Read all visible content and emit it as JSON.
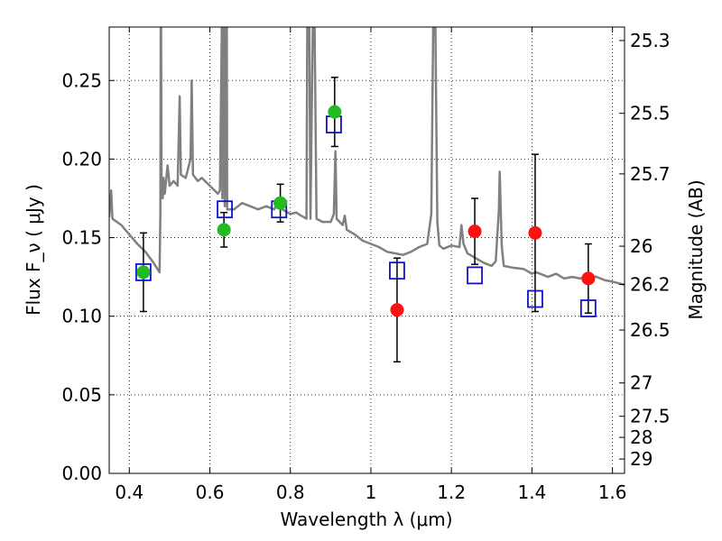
{
  "chart_data": {
    "type": "scatter",
    "xlabel": "Wavelength  λ (μm)",
    "ylabel": "Flux  F_ν  ( μJy )",
    "ylabel_right": "Magnitude (AB)",
    "xlim": [
      0.35,
      1.63
    ],
    "ylim": [
      0.0,
      0.284
    ],
    "x_ticks": [
      0.4,
      0.6,
      0.8,
      1.0,
      1.2,
      1.4,
      1.6
    ],
    "x_tick_labels": [
      "0.4",
      "0.6",
      "0.8",
      "1",
      "1.2",
      "1.4",
      "1.6"
    ],
    "y_ticks": [
      0.0,
      0.05,
      0.1,
      0.15,
      0.2,
      0.25
    ],
    "y_tick_labels": [
      "0.00",
      "0.05",
      "0.10",
      "0.15",
      "0.20",
      "0.25"
    ],
    "right_ticks": [
      {
        "label": "25.3",
        "value": 25.3
      },
      {
        "label": "25.5",
        "value": 25.5
      },
      {
        "label": "25.7",
        "value": 25.7
      },
      {
        "label": "26",
        "value": 26.0
      },
      {
        "label": "26.2",
        "value": 26.2
      },
      {
        "label": "26.5",
        "value": 26.5
      },
      {
        "label": "27",
        "value": 27.0
      },
      {
        "label": "27.5",
        "value": 27.5
      },
      {
        "label": "28",
        "value": 28.0
      },
      {
        "label": "29",
        "value": 29.0
      }
    ],
    "grid": true,
    "series": [
      {
        "marker": "circle",
        "color": "#22bb22",
        "points": [
          {
            "x": 0.435,
            "y": 0.128,
            "err": 0.025
          },
          {
            "x": 0.635,
            "y": 0.155,
            "err": 0.011
          },
          {
            "x": 0.775,
            "y": 0.172,
            "err": 0.012
          },
          {
            "x": 0.91,
            "y": 0.23,
            "err": 0.022
          }
        ]
      },
      {
        "marker": "circle",
        "color": "#ff1111",
        "points": [
          {
            "x": 1.065,
            "y": 0.104,
            "err": 0.033
          },
          {
            "x": 1.258,
            "y": 0.154,
            "err": 0.021
          },
          {
            "x": 1.408,
            "y": 0.153,
            "err": 0.05
          },
          {
            "x": 1.54,
            "y": 0.124,
            "err": 0.022
          }
        ]
      },
      {
        "marker": "square-open",
        "color": "#1111cc",
        "points": [
          {
            "x": 0.435,
            "y": 0.128
          },
          {
            "x": 0.637,
            "y": 0.168
          },
          {
            "x": 0.772,
            "y": 0.168
          },
          {
            "x": 0.908,
            "y": 0.222
          },
          {
            "x": 1.065,
            "y": 0.129
          },
          {
            "x": 1.258,
            "y": 0.126
          },
          {
            "x": 1.408,
            "y": 0.111
          },
          {
            "x": 1.54,
            "y": 0.105
          }
        ]
      },
      {
        "marker": "line",
        "color": "#808080",
        "points": [
          [
            0.35,
            0.163
          ],
          [
            0.355,
            0.18
          ],
          [
            0.358,
            0.162
          ],
          [
            0.38,
            0.158
          ],
          [
            0.4,
            0.152
          ],
          [
            0.42,
            0.146
          ],
          [
            0.44,
            0.141
          ],
          [
            0.46,
            0.134
          ],
          [
            0.47,
            0.13
          ],
          [
            0.475,
            0.128
          ],
          [
            0.477,
            0.165
          ],
          [
            0.478,
            0.29
          ],
          [
            0.479,
            0.29
          ],
          [
            0.48,
            0.18
          ],
          [
            0.483,
            0.175
          ],
          [
            0.485,
            0.188
          ],
          [
            0.488,
            0.178
          ],
          [
            0.495,
            0.196
          ],
          [
            0.5,
            0.183
          ],
          [
            0.51,
            0.186
          ],
          [
            0.52,
            0.183
          ],
          [
            0.525,
            0.24
          ],
          [
            0.528,
            0.19
          ],
          [
            0.54,
            0.188
          ],
          [
            0.552,
            0.2
          ],
          [
            0.555,
            0.25
          ],
          [
            0.558,
            0.19
          ],
          [
            0.57,
            0.186
          ],
          [
            0.58,
            0.188
          ],
          [
            0.6,
            0.183
          ],
          [
            0.62,
            0.178
          ],
          [
            0.625,
            0.18
          ],
          [
            0.63,
            0.29
          ],
          [
            0.631,
            0.175
          ],
          [
            0.636,
            0.29
          ],
          [
            0.637,
            0.17
          ],
          [
            0.642,
            0.29
          ],
          [
            0.643,
            0.168
          ],
          [
            0.66,
            0.168
          ],
          [
            0.68,
            0.172
          ],
          [
            0.7,
            0.17
          ],
          [
            0.72,
            0.168
          ],
          [
            0.74,
            0.17
          ],
          [
            0.76,
            0.168
          ],
          [
            0.775,
            0.175
          ],
          [
            0.78,
            0.168
          ],
          [
            0.8,
            0.165
          ],
          [
            0.815,
            0.166
          ],
          [
            0.82,
            0.165
          ],
          [
            0.84,
            0.162
          ],
          [
            0.842,
            0.29
          ],
          [
            0.847,
            0.29
          ],
          [
            0.85,
            0.162
          ],
          [
            0.856,
            0.29
          ],
          [
            0.86,
            0.29
          ],
          [
            0.865,
            0.162
          ],
          [
            0.88,
            0.16
          ],
          [
            0.9,
            0.16
          ],
          [
            0.908,
            0.165
          ],
          [
            0.912,
            0.205
          ],
          [
            0.915,
            0.162
          ],
          [
            0.93,
            0.158
          ],
          [
            0.935,
            0.164
          ],
          [
            0.94,
            0.155
          ],
          [
            0.96,
            0.152
          ],
          [
            0.98,
            0.148
          ],
          [
            1.0,
            0.146
          ],
          [
            1.02,
            0.144
          ],
          [
            1.04,
            0.141
          ],
          [
            1.06,
            0.14
          ],
          [
            1.08,
            0.139
          ],
          [
            1.1,
            0.141
          ],
          [
            1.12,
            0.144
          ],
          [
            1.14,
            0.146
          ],
          [
            1.15,
            0.165
          ],
          [
            1.155,
            0.29
          ],
          [
            1.16,
            0.29
          ],
          [
            1.165,
            0.16
          ],
          [
            1.17,
            0.145
          ],
          [
            1.18,
            0.143
          ],
          [
            1.2,
            0.145
          ],
          [
            1.22,
            0.144
          ],
          [
            1.225,
            0.158
          ],
          [
            1.23,
            0.146
          ],
          [
            1.24,
            0.14
          ],
          [
            1.26,
            0.137
          ],
          [
            1.28,
            0.134
          ],
          [
            1.3,
            0.132
          ],
          [
            1.31,
            0.135
          ],
          [
            1.318,
            0.168
          ],
          [
            1.32,
            0.192
          ],
          [
            1.325,
            0.145
          ],
          [
            1.33,
            0.132
          ],
          [
            1.35,
            0.131
          ],
          [
            1.38,
            0.13
          ],
          [
            1.4,
            0.127
          ],
          [
            1.41,
            0.128
          ],
          [
            1.42,
            0.127
          ],
          [
            1.44,
            0.125
          ],
          [
            1.46,
            0.127
          ],
          [
            1.48,
            0.124
          ],
          [
            1.5,
            0.125
          ],
          [
            1.52,
            0.124
          ],
          [
            1.54,
            0.126
          ],
          [
            1.56,
            0.125
          ],
          [
            1.58,
            0.123
          ],
          [
            1.6,
            0.122
          ],
          [
            1.63,
            0.12
          ]
        ]
      }
    ]
  }
}
